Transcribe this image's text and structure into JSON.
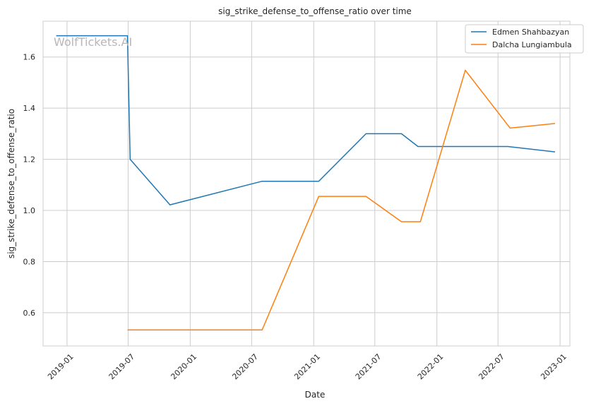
{
  "chart_data": {
    "type": "line",
    "title": "sig_strike_defense_to_offense_ratio over time",
    "xlabel": "Date",
    "ylabel": "sig_strike_defense_to_offense_ratio",
    "watermark": "WolfTickets.AI",
    "x_ticks": [
      "2019-01",
      "2019-07",
      "2020-01",
      "2020-07",
      "2021-01",
      "2021-07",
      "2022-01",
      "2022-07",
      "2023-01"
    ],
    "y_ticks": [
      "0.6",
      "0.8",
      "1.0",
      "1.2",
      "1.4",
      "1.6"
    ],
    "xlim": [
      "2018-10-22",
      "2023-01-30"
    ],
    "ylim": [
      0.47,
      1.74
    ],
    "grid": true,
    "legend_position": "top-right",
    "series": [
      {
        "name": "Edmen Shahbazyan",
        "color": "#1f77b4",
        "points": [
          {
            "x": "2018-11-30",
            "y": 1.683
          },
          {
            "x": "2019-06-29",
            "y": 1.683
          },
          {
            "x": "2019-07-07",
            "y": 1.2
          },
          {
            "x": "2019-11-02",
            "y": 1.022
          },
          {
            "x": "2020-08-01",
            "y": 1.114
          },
          {
            "x": "2021-01-16",
            "y": 1.114
          },
          {
            "x": "2021-06-05",
            "y": 1.3
          },
          {
            "x": "2021-09-18",
            "y": 1.3
          },
          {
            "x": "2021-11-06",
            "y": 1.25
          },
          {
            "x": "2022-07-30",
            "y": 1.25
          },
          {
            "x": "2022-12-17",
            "y": 1.229
          }
        ]
      },
      {
        "name": "Dalcha Lungiambula",
        "color": "#ff7f0e",
        "points": [
          {
            "x": "2019-06-29",
            "y": 0.533
          },
          {
            "x": "2020-08-01",
            "y": 0.533
          },
          {
            "x": "2021-01-16",
            "y": 1.055
          },
          {
            "x": "2021-06-05",
            "y": 1.055
          },
          {
            "x": "2021-09-18",
            "y": 0.956
          },
          {
            "x": "2021-11-13",
            "y": 0.956
          },
          {
            "x": "2022-03-26",
            "y": 1.548
          },
          {
            "x": "2022-08-06",
            "y": 1.322
          },
          {
            "x": "2022-12-17",
            "y": 1.34
          }
        ]
      }
    ]
  }
}
